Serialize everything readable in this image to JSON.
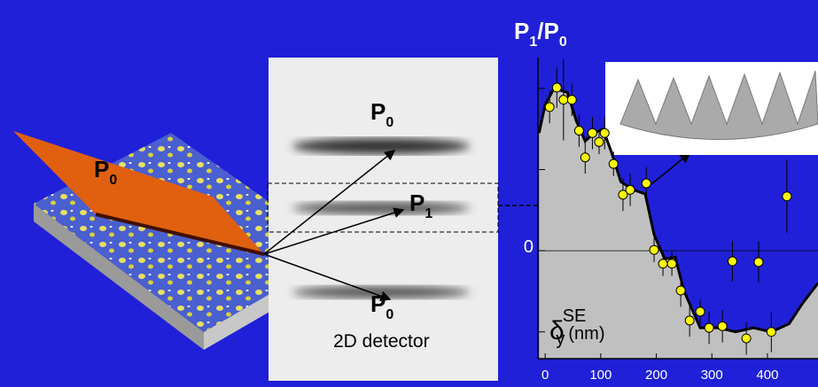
{
  "chart_data": {
    "type": "scatter",
    "title": [
      "P",
      "1",
      "/P",
      "0"
    ],
    "x_label": [
      "δ",
      "SE",
      "y",
      "(nm)"
    ],
    "annotations": {
      "sample_beam": [
        "P",
        "0"
      ],
      "detector_top": [
        "P",
        "0"
      ],
      "detector_mid": [
        "P",
        "1"
      ],
      "detector_bottom": [
        "P",
        "0"
      ],
      "detector": "2D detector"
    },
    "x": [
      8,
      21,
      33,
      48,
      61,
      72,
      85,
      97,
      107,
      123,
      140,
      153,
      182,
      196,
      212,
      228,
      244,
      260,
      279,
      295,
      319,
      337,
      362,
      384,
      407,
      435
    ],
    "values": [
      1.77,
      2.01,
      1.86,
      1.86,
      1.48,
      1.15,
      1.45,
      1.34,
      1.45,
      1.07,
      0.69,
      0.75,
      0.83,
      0.01,
      -0.16,
      -0.16,
      -0.49,
      -0.86,
      -0.75,
      -0.95,
      -0.93,
      -0.13,
      -1.08,
      -0.14,
      -1.0,
      0.67
    ],
    "errors": [
      0.2,
      0.25,
      0.5,
      0.2,
      0.2,
      0.2,
      0.2,
      0.15,
      0.2,
      0.15,
      0.2,
      0.2,
      0.2,
      0.15,
      0.15,
      0.15,
      0.2,
      0.2,
      0.15,
      0.2,
      0.2,
      0.25,
      0.2,
      0.25,
      0.25,
      0.45
    ],
    "color": "#ffff00",
    "curve": {
      "x": [
        -11,
        0,
        16,
        40,
        56,
        72,
        88,
        104,
        120,
        136,
        159,
        180,
        196,
        215,
        234,
        250,
        279,
        311,
        343,
        375,
        407,
        439,
        463,
        491
      ],
      "values": [
        1.45,
        1.8,
        2.0,
        1.95,
        1.6,
        1.35,
        1.45,
        1.5,
        1.2,
        0.85,
        0.75,
        0.7,
        0.2,
        -0.1,
        -0.08,
        -0.5,
        -0.95,
        -0.95,
        -1.0,
        -0.95,
        -1.0,
        -0.9,
        -0.65,
        -0.4
      ]
    },
    "xlim": [
      -13,
      491
    ],
    "ylim": [
      -1.33,
      2.38
    ],
    "xticks": [
      0,
      100,
      200,
      300,
      400
    ],
    "yticks": [
      {
        "value": -1,
        "label": null
      },
      0,
      {
        "value": 1,
        "label": null
      },
      {
        "value": 2,
        "label": null
      }
    ]
  }
}
